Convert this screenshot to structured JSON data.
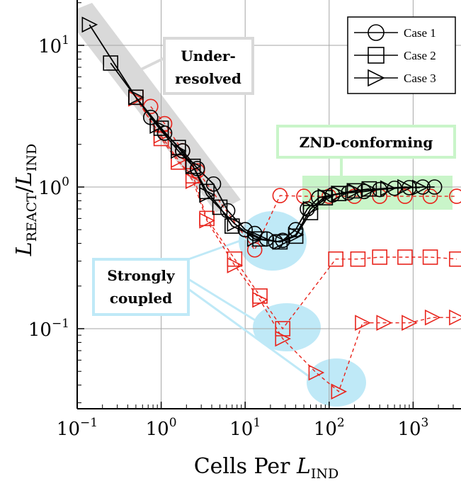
{
  "chart_data": {
    "type": "scatter",
    "xlabel": {
      "main": "Cells Per ",
      "sym": "L",
      "sub": "IND"
    },
    "ylabel": {
      "sym1": "L",
      "sub1": "REACT",
      "slash": "/",
      "sym2": "L",
      "sub2": "IND"
    },
    "xscale": "log",
    "yscale": "log",
    "xlim": [
      0.1,
      3600
    ],
    "ylim": [
      0.022,
      20
    ],
    "grid": true,
    "x_ticks": [
      {
        "value": 0.1,
        "base": "10",
        "exp": "−1"
      },
      {
        "value": 1,
        "base": "10",
        "exp": "0"
      },
      {
        "value": 10,
        "base": "10",
        "exp": "1"
      },
      {
        "value": 100,
        "base": "10",
        "exp": "2"
      },
      {
        "value": 1000,
        "base": "10",
        "exp": "3"
      }
    ],
    "y_ticks": [
      {
        "value": 0.1,
        "base": "10",
        "exp": "−1"
      },
      {
        "value": 1,
        "base": "10",
        "exp": "0"
      },
      {
        "value": 10,
        "base": "10",
        "exp": "1"
      }
    ],
    "legend": {
      "placement": "top-right",
      "entries": [
        {
          "label": "Case 1",
          "marker": "circle"
        },
        {
          "label": "Case 2",
          "marker": "square"
        },
        {
          "label": "Case 3",
          "marker": "triangle-right"
        }
      ]
    },
    "colors": {
      "black_series": "#000000",
      "red_series": "#e8241c",
      "grid": "#a6a6a6",
      "gray_band": "#d9d9d9",
      "green_band": "#c9f5c9",
      "blue_highlight": "#bfe9f7"
    },
    "series": [
      {
        "case": "Case 1",
        "style": "black-solid",
        "marker": "circle",
        "points": [
          [
            0.75,
            3.1
          ],
          [
            1.1,
            2.4
          ],
          [
            1.8,
            1.8
          ],
          [
            2.7,
            1.35
          ],
          [
            4.2,
            1.05
          ],
          [
            6.2,
            0.68
          ],
          [
            10,
            0.5
          ],
          [
            13,
            0.47
          ],
          [
            18,
            0.43
          ],
          [
            23,
            0.41
          ],
          [
            28,
            0.42
          ],
          [
            40,
            0.5
          ],
          [
            55,
            0.7
          ],
          [
            75,
            0.84
          ],
          [
            110,
            0.88
          ],
          [
            170,
            0.91
          ],
          [
            260,
            0.93
          ],
          [
            400,
            0.96
          ],
          [
            600,
            0.98
          ],
          [
            900,
            0.99
          ],
          [
            1300,
            1.0
          ],
          [
            1800,
            1.0
          ]
        ]
      },
      {
        "case": "Case 2",
        "style": "black-solid",
        "marker": "square",
        "points": [
          [
            0.25,
            7.5
          ],
          [
            0.5,
            4.3
          ],
          [
            1.0,
            2.6
          ],
          [
            1.6,
            1.9
          ],
          [
            2.4,
            1.4
          ],
          [
            3.5,
            0.93
          ],
          [
            5,
            0.72
          ],
          [
            7,
            0.53
          ],
          [
            15,
            0.43
          ],
          [
            26,
            0.41
          ],
          [
            40,
            0.45
          ],
          [
            60,
            0.66
          ],
          [
            90,
            0.84
          ],
          [
            130,
            0.9
          ],
          [
            200,
            0.94
          ],
          [
            300,
            0.97
          ]
        ]
      },
      {
        "case": "Case 3",
        "style": "black-solid",
        "marker": "triangle-right",
        "points": [
          [
            0.14,
            14
          ],
          [
            0.5,
            4.3
          ],
          [
            0.9,
            2.7
          ],
          [
            1.6,
            1.8
          ],
          [
            2.4,
            1.4
          ],
          [
            3.5,
            0.88
          ],
          [
            7.5,
            0.55
          ],
          [
            13,
            0.43
          ],
          [
            26,
            0.41
          ],
          [
            40,
            0.46
          ],
          [
            60,
            0.7
          ],
          [
            90,
            0.86
          ],
          [
            130,
            0.9
          ],
          [
            200,
            0.94
          ],
          [
            300,
            0.96
          ],
          [
            500,
            0.98
          ],
          [
            800,
            1.0
          ],
          [
            1200,
            0.99
          ]
        ]
      },
      {
        "case": "Case 1",
        "style": "red-dashed",
        "marker": "circle",
        "points": [
          [
            0.75,
            3.7
          ],
          [
            1.1,
            2.8
          ],
          [
            1.8,
            1.8
          ],
          [
            2.7,
            1.3
          ],
          [
            13,
            0.36
          ],
          [
            26,
            0.87
          ],
          [
            50,
            0.86
          ],
          [
            100,
            0.86
          ],
          [
            200,
            0.86
          ],
          [
            400,
            0.86
          ],
          [
            800,
            0.86
          ],
          [
            1600,
            0.86
          ],
          [
            3300,
            0.86
          ]
        ]
      },
      {
        "case": "Case 2",
        "style": "red-dashed",
        "marker": "square",
        "points": [
          [
            0.5,
            4.3
          ],
          [
            1.0,
            2.2
          ],
          [
            1.6,
            1.5
          ],
          [
            2.4,
            1.2
          ],
          [
            3.5,
            0.6
          ],
          [
            7.5,
            0.31
          ],
          [
            15,
            0.17
          ],
          [
            28,
            0.1
          ],
          [
            120,
            0.31
          ],
          [
            220,
            0.31
          ],
          [
            400,
            0.32
          ],
          [
            800,
            0.32
          ],
          [
            1600,
            0.32
          ],
          [
            3300,
            0.31
          ]
        ]
      },
      {
        "case": "Case 3",
        "style": "red-dashed",
        "marker": "triangle-right",
        "points": [
          [
            0.5,
            4.2
          ],
          [
            1.0,
            2.3
          ],
          [
            1.6,
            1.55
          ],
          [
            2.4,
            1.1
          ],
          [
            3.5,
            0.58
          ],
          [
            7.5,
            0.28
          ],
          [
            15,
            0.16
          ],
          [
            28,
            0.085
          ],
          [
            70,
            0.049
          ],
          [
            130,
            0.036
          ],
          [
            250,
            0.11
          ],
          [
            450,
            0.11
          ],
          [
            900,
            0.11
          ],
          [
            1700,
            0.12
          ],
          [
            3300,
            0.12
          ]
        ]
      }
    ],
    "annotations": [
      {
        "lines": [
          "Under-",
          "resolved"
        ],
        "color": "gray"
      },
      {
        "lines": [
          "ZND-conforming"
        ],
        "color": "green"
      },
      {
        "lines": [
          "Strongly",
          "coupled"
        ],
        "color": "blue"
      }
    ]
  }
}
